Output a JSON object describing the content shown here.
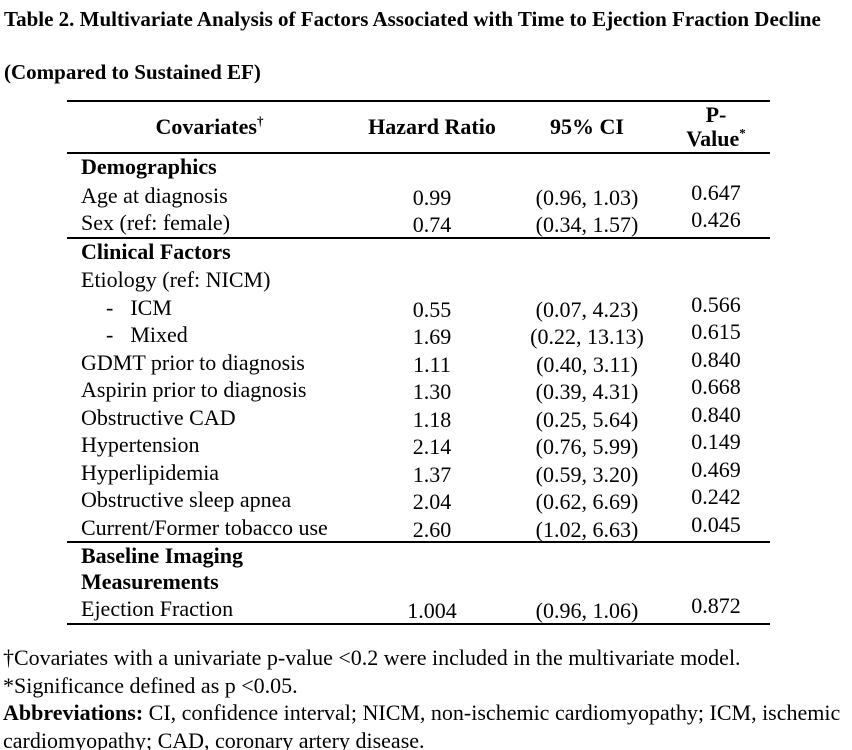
{
  "title": {
    "line1": "Table 2. Multivariate Analysis of Factors Associated with Time to Ejection Fraction Decline",
    "line2": "(Compared to Sustained EF)"
  },
  "table": {
    "header": {
      "covariates": "Covariates",
      "covariates_sup": "†",
      "hazard_ratio": "Hazard Ratio",
      "ci": "95% CI",
      "p_line1": "P-",
      "p_line2": "Value",
      "p_sup": "*"
    },
    "sections": [
      {
        "heading": "Demographics",
        "rows": [
          {
            "label": "Age at diagnosis",
            "hr": "0.99",
            "ci": "(0.96, 1.03)",
            "p": "0.647"
          },
          {
            "label": "Sex (ref: female)",
            "hr": "0.74",
            "ci": "(0.34, 1.57)",
            "p": "0.426"
          }
        ]
      },
      {
        "heading": "Clinical Factors",
        "rows": [
          {
            "label": "Etiology (ref: NICM)",
            "hr": "",
            "ci": "",
            "p": ""
          },
          {
            "label": "ICM",
            "indent": true,
            "bullet": "-",
            "hr": "0.55",
            "ci": "(0.07, 4.23)",
            "p": "0.566"
          },
          {
            "label": "Mixed",
            "indent": true,
            "bullet": "-",
            "hr": "1.69",
            "ci": "(0.22, 13.13)",
            "p": "0.615"
          },
          {
            "label": "GDMT prior to diagnosis",
            "hr": "1.11",
            "ci": "(0.40, 3.11)",
            "p": "0.840"
          },
          {
            "label": "Aspirin prior to diagnosis",
            "hr": "1.30",
            "ci": "(0.39, 4.31)",
            "p": "0.668"
          },
          {
            "label": "Obstructive CAD",
            "hr": "1.18",
            "ci": "(0.25, 5.64)",
            "p": "0.840"
          },
          {
            "label": "Hypertension",
            "hr": "2.14",
            "ci": "(0.76, 5.99)",
            "p": "0.149"
          },
          {
            "label": "Hyperlipidemia",
            "hr": "1.37",
            "ci": "(0.59, 3.20)",
            "p": "0.469"
          },
          {
            "label": "Obstructive sleep apnea",
            "hr": "2.04",
            "ci": "(0.62, 6.69)",
            "p": "0.242"
          },
          {
            "label": "Current/Former tobacco use",
            "hr": "2.60",
            "ci": "(1.02, 6.63)",
            "p": "0.045"
          }
        ]
      },
      {
        "heading": "Baseline Imaging Measurements",
        "rows": [
          {
            "label": "Ejection Fraction",
            "hr": "1.004",
            "ci": "(0.96, 1.06)",
            "p": "0.872"
          }
        ]
      }
    ]
  },
  "footnotes": {
    "dagger_note": "†Covariates with a univariate p-value <0.2 were included in the multivariate model.",
    "significance_note": "*Significance defined as p <0.05.",
    "abbreviations_label": "Abbreviations:",
    "abbreviations_line1": " CI, confidence interval; NICM, non-ischemic cardiomyopathy; ICM, ischemic",
    "abbreviations_line2": "cardiomyopathy; CAD, coronary artery disease."
  },
  "colors": {
    "text": "#000000",
    "background": "#ffffff",
    "border": "#000000"
  }
}
